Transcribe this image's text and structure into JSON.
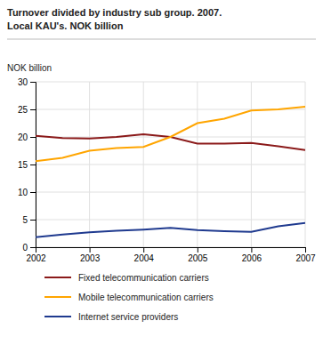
{
  "chart_data": {
    "type": "line",
    "title": "Turnover divided by industry sub group. 2007.",
    "subtitle": "Local KAU's. NOK billion",
    "y_label": "NOK billion",
    "x": [
      2002,
      2002.5,
      2003,
      2003.5,
      2004,
      2004.5,
      2005,
      2005.5,
      2006,
      2006.5,
      2007
    ],
    "series": [
      {
        "name": "Fixed telecommunication carriers",
        "color": "#8B1A1A",
        "values": [
          20.2,
          19.8,
          19.7,
          20.0,
          20.5,
          20.0,
          18.8,
          18.8,
          18.9,
          18.3,
          17.6
        ]
      },
      {
        "name": "Mobile telecommunication carriers",
        "color": "#FFA500",
        "values": [
          15.6,
          16.2,
          17.5,
          18.0,
          18.2,
          20.0,
          22.5,
          23.3,
          24.8,
          25.0,
          25.5
        ]
      },
      {
        "name": "Internet service providers",
        "color": "#1F3A8F",
        "values": [
          1.8,
          2.3,
          2.7,
          3.0,
          3.2,
          3.5,
          3.1,
          2.9,
          2.8,
          3.8,
          4.4
        ]
      }
    ],
    "xlim": [
      2002,
      2007
    ],
    "xticks": [
      2002,
      2003,
      2004,
      2005,
      2006,
      2007
    ],
    "ylim": [
      0,
      30
    ],
    "yticks": [
      0,
      5,
      10,
      15,
      20,
      25,
      30
    ],
    "grid": true,
    "legend": "bottom"
  }
}
